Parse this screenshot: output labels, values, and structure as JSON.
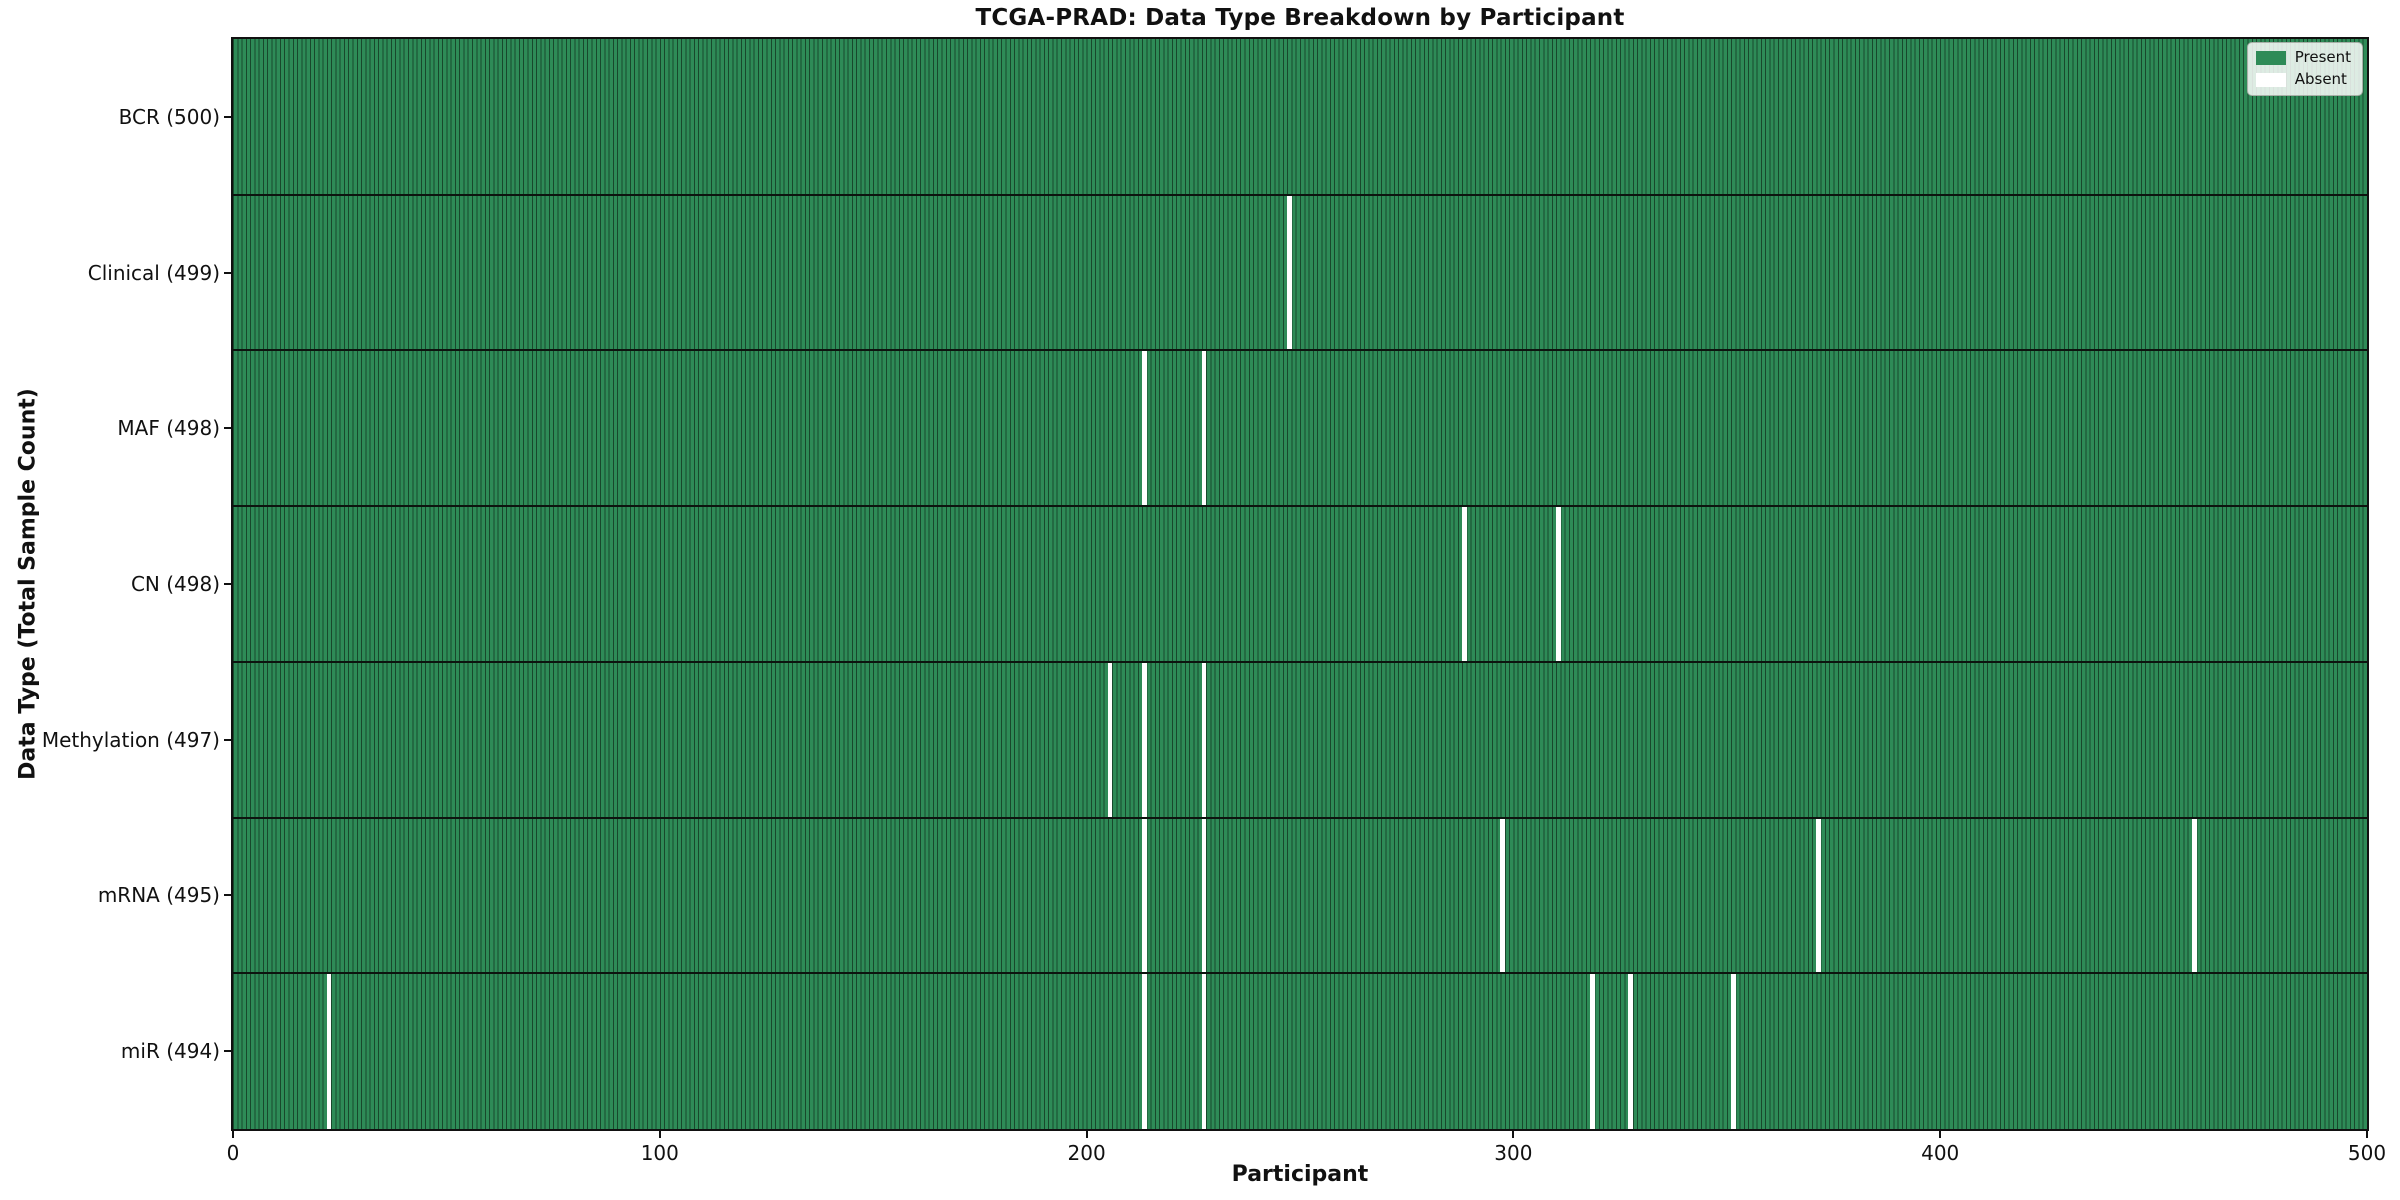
{
  "chart_data": {
    "type": "heatmap",
    "title": "TCGA-PRAD: Data Type Breakdown by Participant",
    "xlabel": "Participant",
    "ylabel": "Data Type (Total Sample Count)",
    "xlim": [
      0,
      500
    ],
    "x_ticks": [
      "0",
      "100",
      "200",
      "300",
      "400",
      "500"
    ],
    "n_participants": 500,
    "grid": "off",
    "legend_position": "upper right",
    "legend": [
      {
        "label": "Present",
        "color": "#2e8b57"
      },
      {
        "label": "Absent",
        "color": "#ffffff"
      }
    ],
    "colors": {
      "present": "#2e8b57",
      "absent": "#ffffff",
      "bar_edge": "#18482c",
      "row_divider": "#0d140f",
      "axis": "#111111"
    },
    "rows": [
      {
        "data_type": "BCR",
        "total": 500,
        "label": "BCR (500)",
        "absent_participants": []
      },
      {
        "data_type": "Clinical",
        "total": 499,
        "label": "Clinical (499)",
        "absent_participants": [
          247
        ]
      },
      {
        "data_type": "MAF",
        "total": 498,
        "label": "MAF (498)",
        "absent_participants": [
          213,
          227
        ]
      },
      {
        "data_type": "CN",
        "total": 498,
        "label": "CN (498)",
        "absent_participants": [
          288,
          310
        ]
      },
      {
        "data_type": "Methylation",
        "total": 497,
        "label": "Methylation (497)",
        "absent_participants": [
          205,
          213,
          227
        ]
      },
      {
        "data_type": "mRNA",
        "total": 495,
        "label": "mRNA (495)",
        "absent_participants": [
          213,
          227,
          297,
          371,
          459
        ]
      },
      {
        "data_type": "miR",
        "total": 494,
        "label": "miR (494)",
        "absent_participants": [
          22,
          213,
          227,
          318,
          327,
          351
        ]
      }
    ]
  }
}
